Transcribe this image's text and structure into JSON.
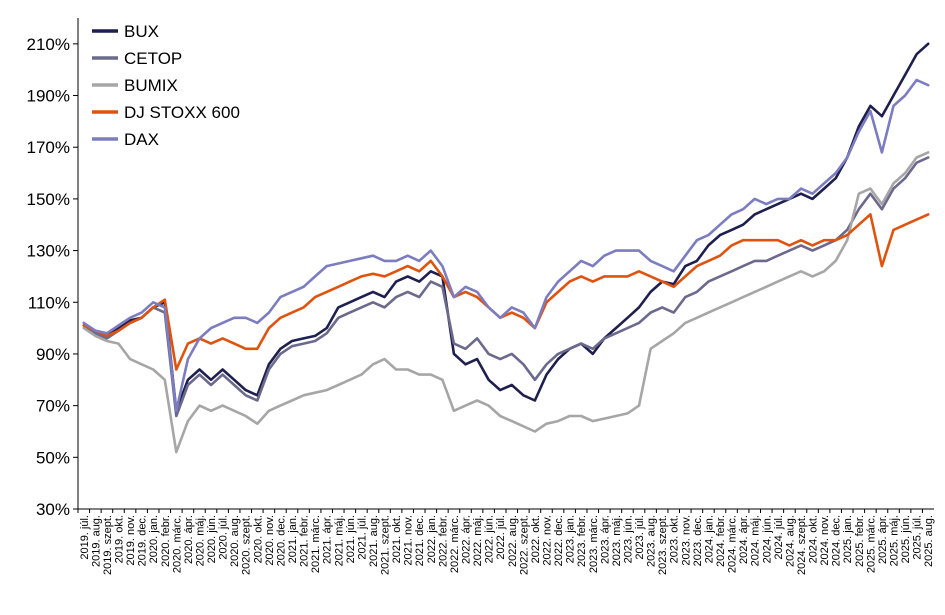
{
  "chart_data": {
    "type": "line",
    "title": "",
    "xlabel": "",
    "ylabel": "",
    "ylim": [
      30,
      220
    ],
    "yticks": [
      "30%",
      "50%",
      "70%",
      "90%",
      "110%",
      "130%",
      "150%",
      "170%",
      "190%",
      "210%"
    ],
    "ytick_values": [
      30,
      50,
      70,
      90,
      110,
      130,
      150,
      170,
      190,
      210
    ],
    "grid": false,
    "legend_position": "top-left",
    "x": [
      "2019. júl.",
      "2019. aug.",
      "2019. szept.",
      "2019. okt.",
      "2019. nov.",
      "2019. dec.",
      "2020. jan.",
      "2020. febr.",
      "2020. márc.",
      "2020. ápr.",
      "2020. máj.",
      "2020. jún.",
      "2020. júl.",
      "2020. aug.",
      "2020. szept.",
      "2020. okt.",
      "2020. nov.",
      "2020. dec.",
      "2021. jan.",
      "2021. febr.",
      "2021. márc.",
      "2021. ápr.",
      "2021. máj.",
      "2021. jún.",
      "2021. júl.",
      "2021. aug.",
      "2021. szept.",
      "2021. okt.",
      "2021. nov.",
      "2021. dec.",
      "2022. jan.",
      "2022. febr.",
      "2022. márc.",
      "2022. ápr.",
      "2022. máj.",
      "2022. jún.",
      "2022. júl.",
      "2022. aug.",
      "2022. szept.",
      "2022. okt.",
      "2022. nov.",
      "2022. dec.",
      "2023. jan.",
      "2023. febr.",
      "2023. márc.",
      "2023. ápr.",
      "2023. máj.",
      "2023. jún.",
      "2023. júl.",
      "2023. aug.",
      "2023. szept.",
      "2023. okt.",
      "2023. nov.",
      "2023. dec.",
      "2024. jan.",
      "2024. febr.",
      "2024. márc.",
      "2024. ápr.",
      "2024. máj.",
      "2024. jún.",
      "2024. júl.",
      "2024. aug.",
      "2024. szept.",
      "2024. okt.",
      "2024. nov.",
      "2024. dec.",
      "2025. jan.",
      "2025. febr.",
      "2025. márc.",
      "2025. ápr.",
      "2025. máj.",
      "2025. jún.",
      "2025. júl.",
      "2025. aug."
    ],
    "series": [
      {
        "name": "BUX",
        "color": "#1f1f4f",
        "width": 2.6,
        "values": [
          101,
          99,
          97,
          100,
          103,
          104,
          108,
          110,
          68,
          80,
          84,
          80,
          84,
          80,
          76,
          74,
          86,
          92,
          95,
          96,
          97,
          100,
          108,
          110,
          112,
          114,
          112,
          118,
          120,
          118,
          122,
          120,
          90,
          86,
          88,
          80,
          76,
          78,
          74,
          72,
          82,
          88,
          92,
          94,
          90,
          96,
          100,
          104,
          108,
          114,
          118,
          117,
          124,
          126,
          132,
          136,
          138,
          140,
          144,
          146,
          148,
          150,
          152,
          150,
          154,
          158,
          166,
          178,
          186,
          182,
          190,
          198,
          206,
          210
        ]
      },
      {
        "name": "CETOP",
        "color": "#6b6a8c",
        "width": 2.6,
        "values": [
          101,
          98,
          96,
          99,
          102,
          104,
          108,
          106,
          66,
          78,
          82,
          78,
          82,
          78,
          74,
          72,
          84,
          90,
          93,
          94,
          95,
          98,
          104,
          106,
          108,
          110,
          108,
          112,
          114,
          112,
          118,
          116,
          94,
          92,
          96,
          90,
          88,
          90,
          86,
          80,
          86,
          90,
          92,
          94,
          92,
          96,
          98,
          100,
          102,
          106,
          108,
          106,
          112,
          114,
          118,
          120,
          122,
          124,
          126,
          126,
          128,
          130,
          132,
          130,
          132,
          134,
          138,
          146,
          152,
          146,
          154,
          158,
          164,
          166
        ]
      },
      {
        "name": "BUMIX",
        "color": "#a6a6a6",
        "width": 2.6,
        "values": [
          100,
          97,
          95,
          94,
          88,
          86,
          84,
          80,
          52,
          64,
          70,
          68,
          70,
          68,
          66,
          63,
          68,
          70,
          72,
          74,
          75,
          76,
          78,
          80,
          82,
          86,
          88,
          84,
          84,
          82,
          82,
          80,
          68,
          70,
          72,
          70,
          66,
          64,
          62,
          60,
          63,
          64,
          66,
          66,
          64,
          65,
          66,
          67,
          70,
          92,
          95,
          98,
          102,
          104,
          106,
          108,
          110,
          112,
          114,
          116,
          118,
          120,
          122,
          120,
          122,
          126,
          134,
          152,
          154,
          148,
          156,
          160,
          166,
          168
        ]
      },
      {
        "name": "DJ STOXX 600",
        "color": "#e0530e",
        "width": 2.6,
        "values": [
          101,
          99,
          97,
          99,
          102,
          104,
          108,
          111,
          84,
          94,
          96,
          94,
          96,
          94,
          92,
          92,
          100,
          104,
          106,
          108,
          112,
          114,
          116,
          118,
          120,
          121,
          120,
          122,
          124,
          122,
          126,
          120,
          112,
          114,
          112,
          108,
          104,
          106,
          104,
          100,
          110,
          114,
          118,
          120,
          118,
          120,
          120,
          120,
          122,
          120,
          118,
          116,
          120,
          124,
          126,
          128,
          132,
          134,
          134,
          134,
          134,
          132,
          134,
          132,
          134,
          134,
          136,
          140,
          144,
          124,
          138,
          140,
          142,
          144
        ]
      },
      {
        "name": "DAX",
        "color": "#7c7cc0",
        "width": 2.6,
        "values": [
          102,
          99,
          98,
          101,
          104,
          106,
          110,
          108,
          68,
          88,
          96,
          100,
          102,
          104,
          104,
          102,
          106,
          112,
          114,
          116,
          120,
          124,
          125,
          126,
          127,
          128,
          126,
          126,
          128,
          126,
          130,
          124,
          112,
          116,
          114,
          108,
          104,
          108,
          106,
          100,
          112,
          118,
          122,
          126,
          124,
          128,
          130,
          130,
          130,
          126,
          124,
          122,
          128,
          134,
          136,
          140,
          144,
          146,
          150,
          148,
          150,
          150,
          154,
          152,
          156,
          160,
          166,
          176,
          184,
          168,
          186,
          190,
          196,
          194
        ]
      }
    ]
  }
}
